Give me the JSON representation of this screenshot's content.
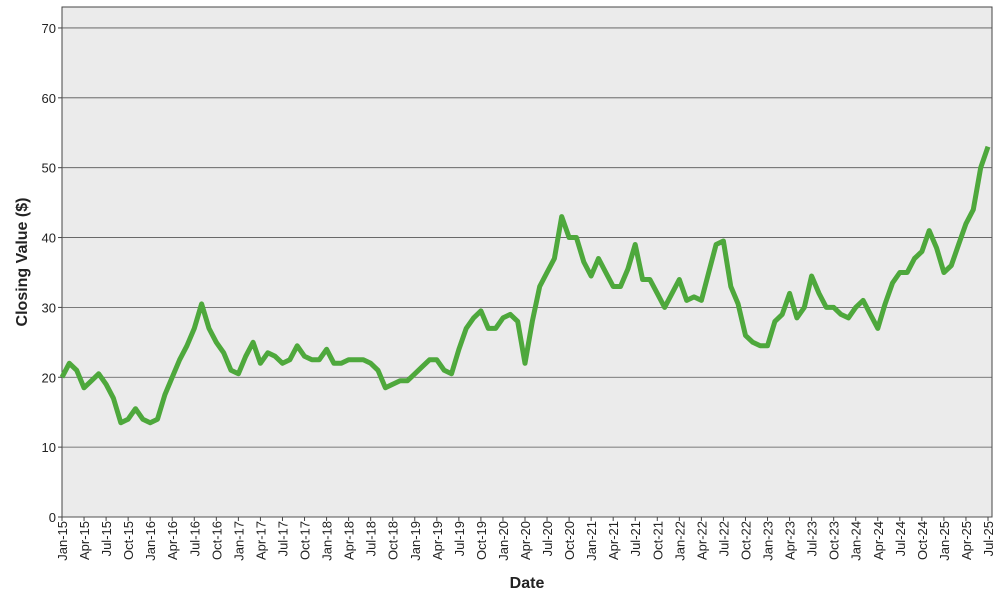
{
  "chart_data": {
    "type": "line",
    "xlabel": "Date",
    "ylabel": "Closing Value ($)",
    "categories": [
      "Jan-15",
      null,
      null,
      "Apr-15",
      null,
      null,
      "Jul-15",
      null,
      null,
      "Oct-15",
      null,
      null,
      "Jan-16",
      null,
      null,
      "Apr-16",
      null,
      null,
      "Jul-16",
      null,
      null,
      "Oct-16",
      null,
      null,
      "Jan-17",
      null,
      null,
      "Apr-17",
      null,
      null,
      "Jul-17",
      null,
      null,
      "Oct-17",
      null,
      null,
      "Jan-18",
      null,
      null,
      "Apr-18",
      null,
      null,
      "Jul-18",
      null,
      null,
      "Oct-18",
      null,
      null,
      "Jan-19",
      null,
      null,
      "Apr-19",
      null,
      null,
      "Jul-19",
      null,
      null,
      "Oct-19",
      null,
      null,
      "Jan-20",
      null,
      null,
      "Apr-20",
      null,
      null,
      "Jul-20",
      null,
      null,
      "Oct-20",
      null,
      null,
      "Jan-21",
      null,
      null,
      "Apr-21",
      null,
      null,
      "Jul-21",
      null,
      null,
      "Oct-21",
      null,
      null,
      "Jan-22",
      null,
      null,
      "Apr-22",
      null,
      null,
      "Jul-22",
      null,
      null,
      "Oct-22",
      null,
      null,
      "Jan-23",
      null,
      null,
      "Apr-23",
      null,
      null,
      "Jul-23",
      null,
      null,
      "Oct-23",
      null,
      null,
      "Jan-24",
      null,
      null,
      "Apr-24",
      null,
      null,
      "Jul-24",
      null,
      null,
      "Oct-24",
      null,
      null,
      "Jan-25",
      null,
      null,
      "Apr-25",
      null,
      null,
      "Jul-25"
    ],
    "values": [
      20,
      22,
      21,
      18.5,
      19.5,
      20.5,
      19,
      17,
      13.5,
      14,
      15.5,
      14,
      13.5,
      14,
      17.5,
      20,
      22.5,
      24.5,
      27,
      30.5,
      27,
      25,
      23.5,
      21,
      20.5,
      23,
      25,
      22,
      23.5,
      23,
      22,
      22.5,
      24.5,
      23,
      22.5,
      22.5,
      24,
      22,
      22,
      22.5,
      22.5,
      22.5,
      22,
      21,
      18.5,
      19,
      19.5,
      19.5,
      20.5,
      21.5,
      22.5,
      22.5,
      21,
      20.5,
      24,
      27,
      28.5,
      29.5,
      27,
      27,
      28.5,
      29,
      28,
      22,
      28,
      33,
      35,
      37,
      43,
      40,
      40,
      36.5,
      34.5,
      37,
      35,
      33,
      33,
      35.5,
      39,
      34,
      34,
      32,
      30,
      32,
      34,
      31,
      31.5,
      31,
      35,
      39,
      39.5,
      33,
      30.5,
      26,
      25,
      24.5,
      24.5,
      28,
      29,
      32,
      28.5,
      30,
      34.5,
      32,
      30,
      30,
      29,
      28.5,
      30,
      31,
      29,
      27,
      30.5,
      33.5,
      35,
      35,
      37,
      38,
      41,
      38.5,
      35,
      36,
      39,
      42,
      44,
      50,
      53
    ],
    "color": "#4ea83c",
    "ylim": [
      0,
      73
    ],
    "yticks": [
      0,
      10,
      20,
      30,
      40,
      50,
      60,
      70
    ],
    "grid": true
  }
}
